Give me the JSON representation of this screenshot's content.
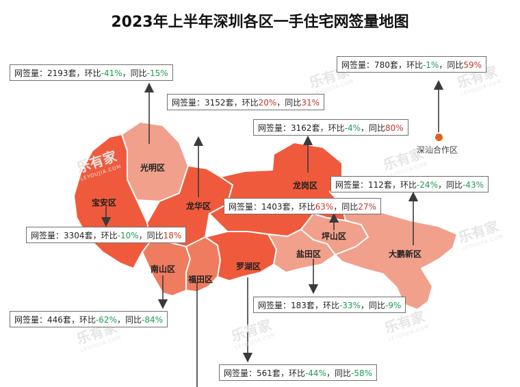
{
  "title": "2023年上半年深圳各区一手住宅网签量地图",
  "colors": {
    "deep": "#f05a3c",
    "mid": "#f07c5f",
    "light": "#f1a08c",
    "dot": "#e0611f"
  },
  "labels": {
    "sales": "网签量：",
    "unit": "套",
    "sep1": "，",
    "mom": "环比",
    "sep2": "，",
    "yoy": "同比"
  },
  "districts": [
    {
      "id": "guangming",
      "name": "光明区",
      "sales": "2193",
      "mom": "-41%",
      "yoy": "-15%"
    },
    {
      "id": "longhua",
      "name": "龙华区",
      "sales": "3152",
      "mom": "20%",
      "yoy": "31%"
    },
    {
      "id": "longgang",
      "name": "龙岗区",
      "sales": "3162",
      "mom": "-4%",
      "yoy": "80%"
    },
    {
      "id": "shanwei",
      "name": "深汕合作区",
      "sales": "780",
      "mom": "-1%",
      "yoy": "59%"
    },
    {
      "id": "dapeng",
      "name": "大鹏新区",
      "sales": "112",
      "mom": "-24%",
      "yoy": "-43%"
    },
    {
      "id": "pingshan",
      "name": "坪山区",
      "sales": "1403",
      "mom": "63%",
      "yoy": "27%"
    },
    {
      "id": "baoan",
      "name": "宝安区",
      "sales": "3304",
      "mom": "-10%",
      "yoy": "18%"
    },
    {
      "id": "yantian",
      "name": "盐田区",
      "sales": "183",
      "mom": "-33%",
      "yoy": "-9%"
    },
    {
      "id": "nanshan",
      "name": "南山区",
      "sales": "446",
      "mom": "-62%",
      "yoy": "-84%"
    },
    {
      "id": "luohu",
      "name": "罗湖区",
      "sales": "561",
      "mom": "-44%",
      "yoy": "-58%"
    },
    {
      "id": "futian",
      "name": "福田区"
    }
  ],
  "watermark": {
    "text": "乐有家",
    "sub": "LEYOUJIA.COM"
  }
}
